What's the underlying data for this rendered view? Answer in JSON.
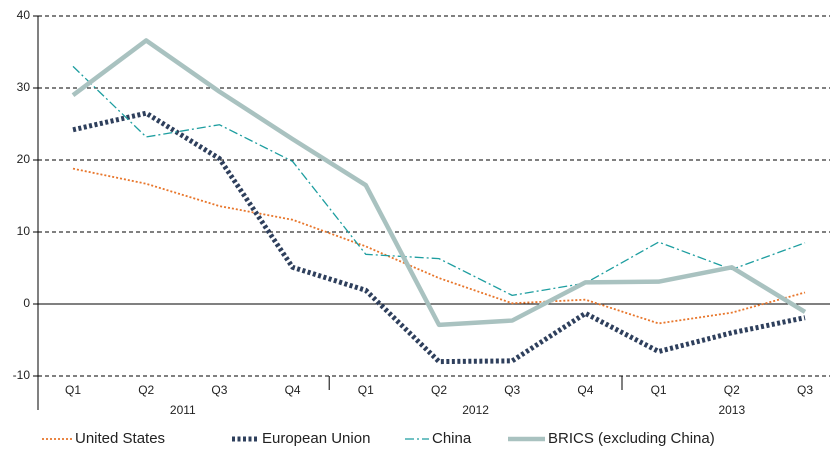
{
  "chart_data": {
    "type": "line",
    "categories": [
      "Q1",
      "Q2",
      "Q3",
      "Q4",
      "Q1",
      "Q2",
      "Q3",
      "Q4",
      "Q1",
      "Q2",
      "Q3"
    ],
    "groups": [
      {
        "label": "2011",
        "count": 4
      },
      {
        "label": "2012",
        "count": 4
      },
      {
        "label": "2013",
        "count": 3
      }
    ],
    "series": [
      {
        "name": "United States",
        "color": "#e8762b",
        "style": "dotted",
        "values": [
          18.8,
          16.7,
          13.6,
          11.7,
          8.0,
          3.6,
          0.1,
          0.6,
          -2.7,
          -1.2,
          1.6
        ]
      },
      {
        "name": "European Union",
        "color": "#2e3f5c",
        "style": "thick-dotted",
        "values": [
          24.2,
          26.5,
          20.2,
          5.1,
          1.9,
          -8.0,
          -7.9,
          -1.3,
          -6.6,
          -4.0,
          -1.9
        ]
      },
      {
        "name": "China",
        "color": "#1e9ea0",
        "style": "dash-dot",
        "values": [
          33.0,
          23.2,
          24.9,
          19.8,
          6.9,
          6.3,
          1.2,
          2.9,
          8.6,
          4.8,
          8.5
        ]
      },
      {
        "name": "BRICS (excluding China)",
        "color": "#a9c2c0",
        "style": "thick-solid",
        "values": [
          29.0,
          36.6,
          29.5,
          22.9,
          16.5,
          -2.9,
          -2.3,
          3.0,
          3.1,
          5.1,
          -1.1
        ]
      }
    ],
    "ylim": [
      -10,
      40
    ],
    "yticks": [
      -10,
      0,
      10,
      20,
      30,
      40
    ],
    "grid": true,
    "legend": "bottom"
  }
}
